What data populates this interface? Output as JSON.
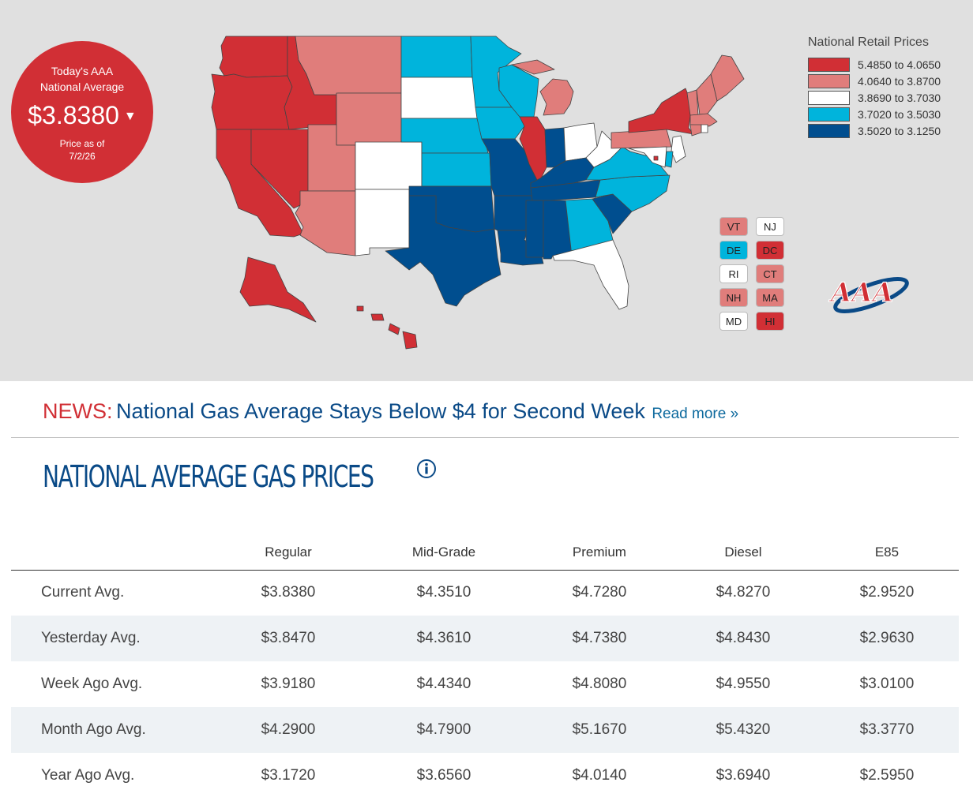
{
  "badge": {
    "line1": "Today's AAA",
    "line2": "National Average",
    "price": "$3.8380",
    "asof_label": "Price as of",
    "asof_date": "7/2/26"
  },
  "legend": {
    "title": "National Retail Prices",
    "ranges": [
      {
        "label": "5.4850 to 4.0650",
        "color": "#d12f35"
      },
      {
        "label": "4.0640 to 3.8700",
        "color": "#e07d7b"
      },
      {
        "label": "3.8690 to 3.7030",
        "color": "#ffffff"
      },
      {
        "label": "3.7020 to 3.5030",
        "color": "#00b4dc"
      },
      {
        "label": "3.5020 to 3.1250",
        "color": "#004e8f"
      }
    ]
  },
  "state_tiers": {
    "WA": 0,
    "OR": 0,
    "CA": 0,
    "NV": 0,
    "ID": 0,
    "AK": 0,
    "HI": 0,
    "IL": 0,
    "NY": 0,
    "DC": 0,
    "MT": 1,
    "WY": 1,
    "UT": 1,
    "AZ": 1,
    "MI": 1,
    "PA": 1,
    "VT": 1,
    "NH": 1,
    "ME": 1,
    "CT": 1,
    "MA": 1,
    "SD": 2,
    "CO": 2,
    "NM": 2,
    "OH": 2,
    "FL": 2,
    "WV": 2,
    "NJ": 2,
    "RI": 2,
    "MD": 2,
    "ND": 3,
    "MN": 3,
    "WI": 3,
    "NE": 3,
    "IA": 3,
    "KS": 3,
    "VA": 3,
    "NC": 3,
    "GA": 3,
    "DE": 3,
    "TX": 4,
    "OK": 4,
    "MO": 4,
    "AR": 4,
    "LA": 4,
    "MS": 4,
    "AL": 4,
    "TN": 4,
    "KY": 4,
    "IN": 4,
    "SC": 4
  },
  "small_states": [
    "VT",
    "NJ",
    "DE",
    "DC",
    "RI",
    "CT",
    "NH",
    "MA",
    "MD",
    "HI"
  ],
  "news": {
    "tag": "NEWS:",
    "headline": "National Gas Average Stays Below $4 for Second Week",
    "read_more": "Read more »"
  },
  "section_title": "NATIONAL AVERAGE GAS PRICES",
  "table": {
    "headers": [
      "",
      "Regular",
      "Mid-Grade",
      "Premium",
      "Diesel",
      "E85"
    ],
    "rows": [
      {
        "label": "Current Avg.",
        "values": [
          "$3.8380",
          "$4.3510",
          "$4.7280",
          "$4.8270",
          "$2.9520"
        ]
      },
      {
        "label": "Yesterday Avg.",
        "values": [
          "$3.8470",
          "$4.3610",
          "$4.7380",
          "$4.8430",
          "$2.9630"
        ]
      },
      {
        "label": "Week Ago Avg.",
        "values": [
          "$3.9180",
          "$4.4340",
          "$4.8080",
          "$4.9550",
          "$3.0100"
        ]
      },
      {
        "label": "Month Ago Avg.",
        "values": [
          "$4.2900",
          "$4.7900",
          "$5.1670",
          "$5.4320",
          "$3.3770"
        ]
      },
      {
        "label": "Year Ago Avg.",
        "values": [
          "$3.1720",
          "$3.6560",
          "$4.0140",
          "$3.6940",
          "$2.5950"
        ]
      }
    ]
  },
  "logo": {
    "text": "AAA"
  }
}
